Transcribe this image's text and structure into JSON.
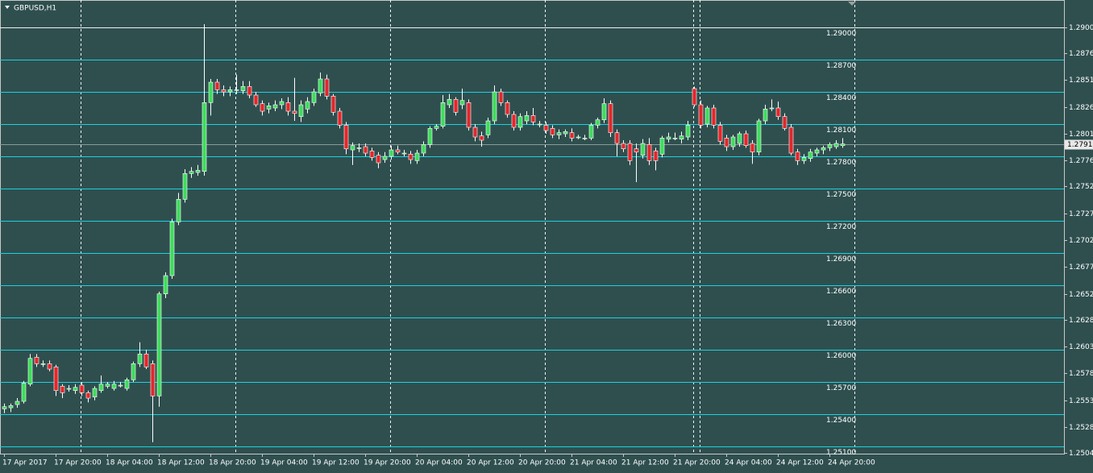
{
  "chart_data": {
    "type": "candlestick",
    "title": "GBPUSD,H1",
    "categories": [
      "17 Apr 2017",
      null,
      null,
      null,
      null,
      null,
      null,
      null,
      "17 Apr 20:00",
      null,
      null,
      null,
      null,
      null,
      null,
      null,
      "18 Apr 04:00",
      null,
      null,
      null,
      null,
      null,
      null,
      null,
      "18 Apr 12:00",
      null,
      null,
      null,
      null,
      null,
      null,
      null,
      "18 Apr 20:00",
      null,
      null,
      null,
      null,
      null,
      null,
      null,
      "19 Apr 04:00",
      null,
      null,
      null,
      null,
      null,
      null,
      null,
      "19 Apr 12:00",
      null,
      null,
      null,
      null,
      null,
      null,
      null,
      "19 Apr 20:00",
      null,
      null,
      null,
      null,
      null,
      null,
      null,
      "20 Apr 04:00",
      null,
      null,
      null,
      null,
      null,
      null,
      null,
      "20 Apr 12:00",
      null,
      null,
      null,
      null,
      null,
      null,
      null,
      "20 Apr 20:00",
      null,
      null,
      null,
      null,
      null,
      null,
      null,
      "21 Apr 04:00",
      null,
      null,
      null,
      null,
      null,
      null,
      null,
      "21 Apr 12:00",
      null,
      null,
      null,
      null,
      null,
      null,
      null,
      "21 Apr 20:00",
      null,
      null,
      null,
      null,
      null,
      null,
      null,
      "24 Apr 04:00",
      null,
      null,
      null,
      null,
      null,
      null,
      null,
      "24 Apr 12:00",
      null,
      null,
      null,
      null,
      null,
      null,
      null,
      "24 Apr 20:00",
      null,
      null
    ],
    "open": [
      1.2545,
      1.2546,
      1.2549,
      1.2552,
      1.2568,
      1.2593,
      1.2587,
      1.2587,
      1.2584,
      1.2566,
      1.2564,
      1.2562,
      1.2567,
      1.256,
      1.2556,
      1.2562,
      1.2566,
      1.2564,
      1.2567,
      1.2564,
      1.2572,
      1.2587,
      1.2596,
      1.2587,
      1.2557,
      1.2652,
      1.2669,
      1.2719,
      1.274,
      1.2764,
      1.2765,
      1.2766,
      1.283,
      1.2849,
      1.2842,
      1.284,
      1.2842,
      1.2841,
      1.2845,
      1.2837,
      1.2829,
      1.2824,
      1.2825,
      1.2828,
      1.283,
      1.2822,
      1.2817,
      1.2824,
      1.283,
      1.2839,
      1.2852,
      1.2836,
      1.2822,
      1.2809,
      1.2786,
      1.2788,
      1.2789,
      1.2785,
      1.2781,
      1.2777,
      1.278,
      1.2786,
      1.2783,
      1.2782,
      1.2776,
      1.2783,
      1.2791,
      1.2806,
      1.2808,
      1.2828,
      1.2833,
      1.2828,
      1.283,
      1.2807,
      1.2799,
      1.28,
      1.2813,
      1.284,
      1.283,
      1.2819,
      1.2807,
      1.2813,
      1.2818,
      1.281,
      1.2809,
      1.2806,
      1.28,
      1.2801,
      1.2802,
      1.2798,
      1.2797,
      1.2797,
      1.2809,
      1.2814,
      1.2829,
      1.2802,
      1.2792,
      1.2792,
      1.2787,
      1.2781,
      1.2791,
      1.2785,
      1.2782,
      1.2796,
      1.2797,
      1.2796,
      1.2798,
      1.2843,
      1.2828,
      1.281,
      1.2825,
      1.2809,
      1.2797,
      1.2789,
      1.2792,
      1.2801,
      1.2792,
      1.2784,
      1.2813,
      1.2825,
      1.2825,
      1.2817,
      1.2807,
      1.2784,
      1.2776,
      1.2778,
      1.2783,
      1.2786,
      1.2788,
      1.2789,
      1.279
    ],
    "high": [
      1.255,
      1.255,
      1.2555,
      1.2571,
      1.2596,
      1.2596,
      1.259,
      1.259,
      1.2586,
      1.2568,
      1.2567,
      1.2568,
      1.257,
      1.2562,
      1.2566,
      1.2576,
      1.257,
      1.2571,
      1.257,
      1.2574,
      1.2589,
      1.2607,
      1.26,
      1.259,
      1.2654,
      1.2672,
      1.2722,
      1.2746,
      1.2768,
      1.277,
      1.2772,
      1.2903,
      1.2852,
      1.2852,
      1.2846,
      1.2845,
      1.2856,
      1.285,
      1.285,
      1.284,
      1.2832,
      1.283,
      1.2832,
      1.2834,
      1.2835,
      1.2853,
      1.2832,
      1.2835,
      1.2843,
      1.2858,
      1.2856,
      1.2838,
      1.2825,
      1.2812,
      1.2793,
      1.2792,
      1.2792,
      1.2788,
      1.2784,
      1.2784,
      1.279,
      1.279,
      1.2786,
      1.2785,
      1.2786,
      1.2794,
      1.2808,
      1.281,
      1.2837,
      1.2838,
      1.2835,
      1.2843,
      1.2833,
      1.281,
      1.2803,
      1.2816,
      1.2846,
      1.2843,
      1.2832,
      1.2822,
      1.282,
      1.2822,
      1.2825,
      1.2813,
      1.2812,
      1.2809,
      1.2805,
      1.2805,
      1.2806,
      1.28,
      1.28,
      1.2811,
      1.2816,
      1.2834,
      1.2832,
      1.2805,
      1.2795,
      1.2795,
      1.2792,
      1.2796,
      1.2797,
      1.2788,
      1.2799,
      1.2802,
      1.2802,
      1.2803,
      1.2813,
      1.2845,
      1.2832,
      1.2827,
      1.2828,
      1.2812,
      1.28,
      1.28,
      1.2803,
      1.2804,
      1.2795,
      1.2815,
      1.2828,
      1.2833,
      1.2831,
      1.282,
      1.281,
      1.2787,
      1.2782,
      1.2787,
      1.2788,
      1.279,
      1.2793,
      1.2795,
      1.2797
    ],
    "low": [
      1.2541,
      1.2542,
      1.2546,
      1.255,
      1.2566,
      1.2584,
      1.2584,
      1.258,
      1.2557,
      1.2555,
      1.2561,
      1.2559,
      1.2557,
      1.2551,
      1.2553,
      1.256,
      1.2564,
      1.2562,
      1.2565,
      1.2562,
      1.257,
      1.2584,
      1.2582,
      1.2514,
      1.2547,
      1.2648,
      1.2666,
      1.2716,
      1.2737,
      1.276,
      1.2762,
      1.2762,
      1.2818,
      1.2838,
      1.2836,
      1.2836,
      1.2838,
      1.2838,
      1.2834,
      1.2826,
      1.2818,
      1.282,
      1.2822,
      1.2824,
      1.2818,
      1.2813,
      1.2812,
      1.282,
      1.2827,
      1.2836,
      1.2833,
      1.2818,
      1.2806,
      1.2782,
      1.2772,
      1.2784,
      1.278,
      1.2776,
      1.2769,
      1.2774,
      1.2777,
      1.2782,
      1.278,
      1.2773,
      1.2773,
      1.278,
      1.2788,
      1.2804,
      1.2806,
      1.2825,
      1.2818,
      1.2824,
      1.2804,
      1.2794,
      1.2789,
      1.2797,
      1.281,
      1.2827,
      1.2816,
      1.2804,
      1.2804,
      1.281,
      1.2809,
      1.2807,
      1.2801,
      1.2797,
      1.2796,
      1.2798,
      1.2794,
      1.2796,
      1.2795,
      1.2795,
      1.2806,
      1.2811,
      1.2798,
      1.278,
      1.2784,
      1.2772,
      1.2756,
      1.2778,
      1.2772,
      1.2767,
      1.2779,
      1.2793,
      1.2795,
      1.2792,
      1.2795,
      1.2826,
      1.2806,
      1.2807,
      1.2806,
      1.2791,
      1.2785,
      1.2786,
      1.2789,
      1.2788,
      1.2773,
      1.2781,
      1.281,
      1.2822,
      1.2814,
      1.2804,
      1.2781,
      1.2772,
      1.2773,
      1.2775,
      1.278,
      1.2782,
      1.2785,
      1.2787,
      1.2788
    ],
    "close": [
      1.2547,
      1.2548,
      1.2552,
      1.2569,
      1.2592,
      1.2587,
      1.2587,
      1.2582,
      1.2562,
      1.256,
      1.2564,
      1.2565,
      1.256,
      1.2555,
      1.2564,
      1.2568,
      1.2568,
      1.2568,
      1.2567,
      1.2572,
      1.2587,
      1.2596,
      1.2584,
      1.2557,
      1.2652,
      1.2669,
      1.2719,
      1.274,
      1.2764,
      1.2766,
      1.2767,
      1.283,
      1.2849,
      1.2842,
      1.284,
      1.2842,
      1.2842,
      1.2845,
      1.2837,
      1.2828,
      1.2822,
      1.2827,
      1.2828,
      1.2831,
      1.2822,
      1.282,
      1.2828,
      1.2831,
      1.284,
      1.2852,
      1.2836,
      1.2821,
      1.2809,
      1.2787,
      1.279,
      1.2788,
      1.2783,
      1.2779,
      1.2774,
      1.278,
      1.2786,
      1.2784,
      1.2783,
      1.2777,
      1.2783,
      1.2791,
      1.2806,
      1.2808,
      1.283,
      1.2833,
      1.2821,
      1.2832,
      1.2807,
      1.2798,
      1.2795,
      1.2813,
      1.284,
      1.283,
      1.2819,
      1.2807,
      1.2817,
      1.2818,
      1.2812,
      1.281,
      1.2804,
      1.28,
      1.2802,
      1.2803,
      1.2797,
      1.2798,
      1.2797,
      1.2809,
      1.2814,
      1.2829,
      1.2802,
      1.2792,
      1.2787,
      1.2776,
      1.2784,
      1.2792,
      1.2776,
      1.2776,
      1.2797,
      1.2798,
      1.2797,
      1.2799,
      1.2809,
      1.2828,
      1.2809,
      1.2825,
      1.2809,
      1.2794,
      1.2789,
      1.2798,
      1.2801,
      1.279,
      1.2784,
      1.2813,
      1.2824,
      1.2825,
      1.2817,
      1.2806,
      1.2783,
      1.2776,
      1.2779,
      1.2784,
      1.2786,
      1.2788,
      1.2791,
      1.2792,
      1.27915
    ],
    "up_color": "#3ddc5b",
    "down_color": "#e3262a",
    "wick_color": "#ffffff",
    "ylim": [
      1.25033,
      1.29255
    ],
    "yticks": [
      {
        "value": 1.29,
        "label": "1.2900"
      },
      1.2876,
      1.2851,
      1.2826,
      1.2801,
      1.2776,
      1.2752,
      1.2727,
      1.2702,
      1.2677,
      1.2652,
      1.2628,
      1.2603,
      1.2578,
      1.2553,
      1.2528,
      1.2504
    ],
    "levels": [
      {
        "value": 1.29,
        "label": "1.29000",
        "color": "#f2f2f2",
        "label_color": "#f0b4b4"
      },
      {
        "value": 1.287,
        "label": "1.28700",
        "color": "#19d3e0",
        "label_color": "#2fd6e6"
      },
      {
        "value": 1.284,
        "label": "1.28400",
        "color": "#19d3e0",
        "label_color": "#2fd6e6"
      },
      {
        "value": 1.281,
        "label": "1.28100",
        "color": "#19d3e0",
        "label_color": "#2fd6e6"
      },
      {
        "value": 1.278,
        "label": "1.27800",
        "color": "#19d3e0",
        "label_color": "#2fd6e6"
      },
      {
        "value": 1.275,
        "label": "1.27500",
        "color": "#19d3e0",
        "label_color": "#2fd6e6"
      },
      {
        "value": 1.272,
        "label": "1.27200",
        "color": "#19d3e0",
        "label_color": "#2fd6e6"
      },
      {
        "value": 1.269,
        "label": "1.26900",
        "color": "#19d3e0",
        "label_color": "#2fd6e6"
      },
      {
        "value": 1.266,
        "label": "1.26600",
        "color": "#19d3e0",
        "label_color": "#2fd6e6"
      },
      {
        "value": 1.263,
        "label": "1.26300",
        "color": "#19d3e0",
        "label_color": "#2fd6e6"
      },
      {
        "value": 1.26,
        "label": "1.26000",
        "color": "#19d3e0",
        "label_color": "#2fd6e6"
      },
      {
        "value": 1.257,
        "label": "1.25700",
        "color": "#19d3e0",
        "label_color": "#2fd6e6"
      },
      {
        "value": 1.254,
        "label": "1.25400",
        "color": "#19d3e0",
        "label_color": "#2fd6e6"
      },
      {
        "value": 1.251,
        "label": "1.25100",
        "color": "#19d3e0",
        "label_color": "#2fd6e6"
      }
    ],
    "last_price": 1.27915
  }
}
